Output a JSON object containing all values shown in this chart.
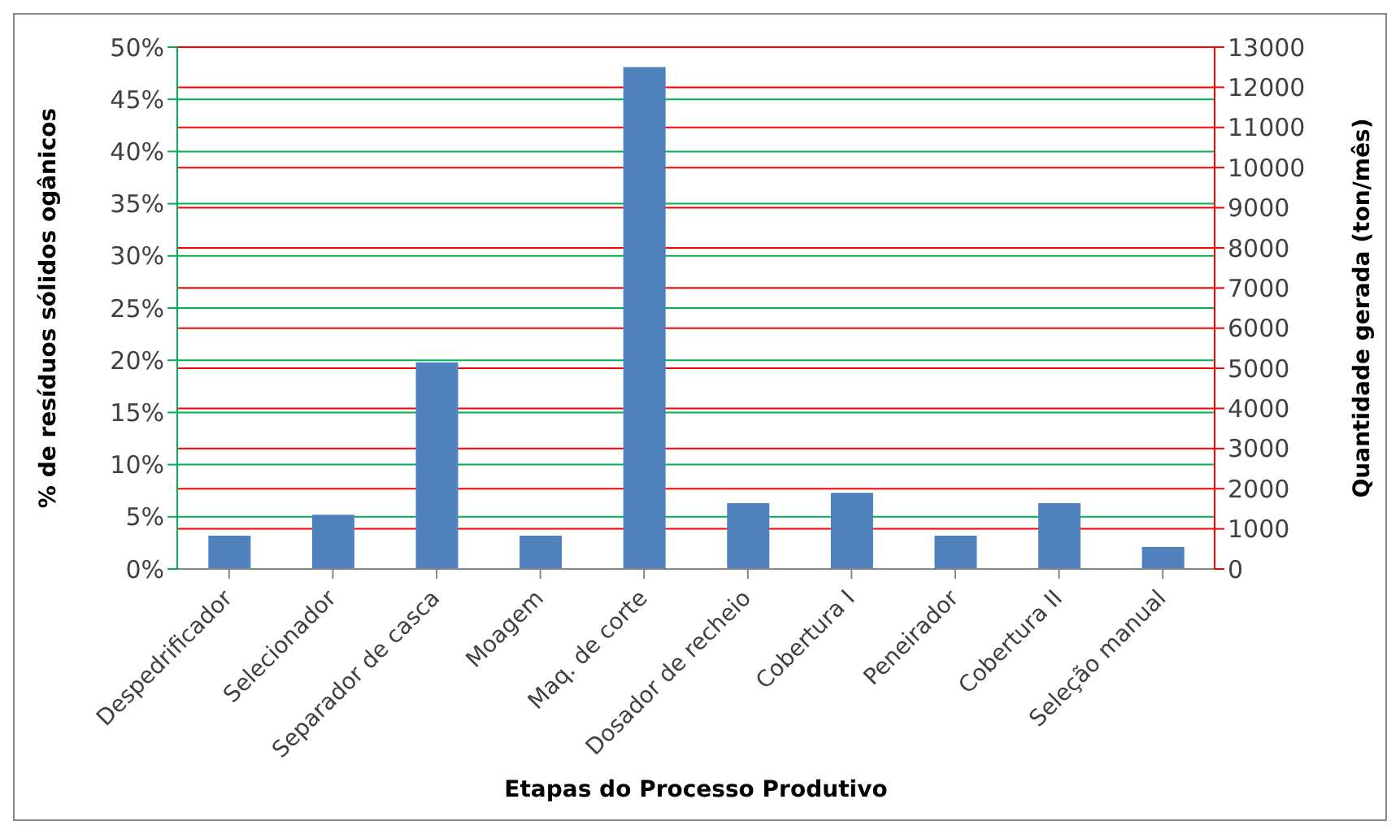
{
  "chart_data": {
    "type": "bar",
    "xlabel": "Etapas do Processo Produtivo",
    "ylabel": "% de resíduos sólidos ogânicos",
    "y2label": "Quantidade gerada (ton/mês)",
    "categories": [
      "Despedrificador",
      "Selecionador",
      "Separador de casca",
      "Moagem",
      "Maq. de corte",
      "Dosador de recheio",
      "Cobertura I",
      "Peneirador",
      "Cobertura II",
      "Seleção manual"
    ],
    "values": [
      3.2,
      5.2,
      19.8,
      3.2,
      48.1,
      6.3,
      7.3,
      3.2,
      6.3,
      2.1
    ],
    "color": "#4f81bd",
    "ylim": [
      0,
      50
    ],
    "yticks": [
      {
        "value": 0,
        "label": "0%"
      },
      {
        "value": 5,
        "label": "5%"
      },
      {
        "value": 10,
        "label": "10%"
      },
      {
        "value": 15,
        "label": "15%"
      },
      {
        "value": 20,
        "label": "20%"
      },
      {
        "value": 25,
        "label": "25%"
      },
      {
        "value": 30,
        "label": "30%"
      },
      {
        "value": 35,
        "label": "35%"
      },
      {
        "value": 40,
        "label": "40%"
      },
      {
        "value": 45,
        "label": "45%"
      },
      {
        "value": 50,
        "label": "50%"
      }
    ],
    "y2lim": [
      0,
      13000
    ],
    "y2ticks": [
      0,
      1000,
      2000,
      3000,
      4000,
      5000,
      6000,
      7000,
      8000,
      9000,
      10000,
      11000,
      12000,
      13000
    ],
    "grid": true
  }
}
